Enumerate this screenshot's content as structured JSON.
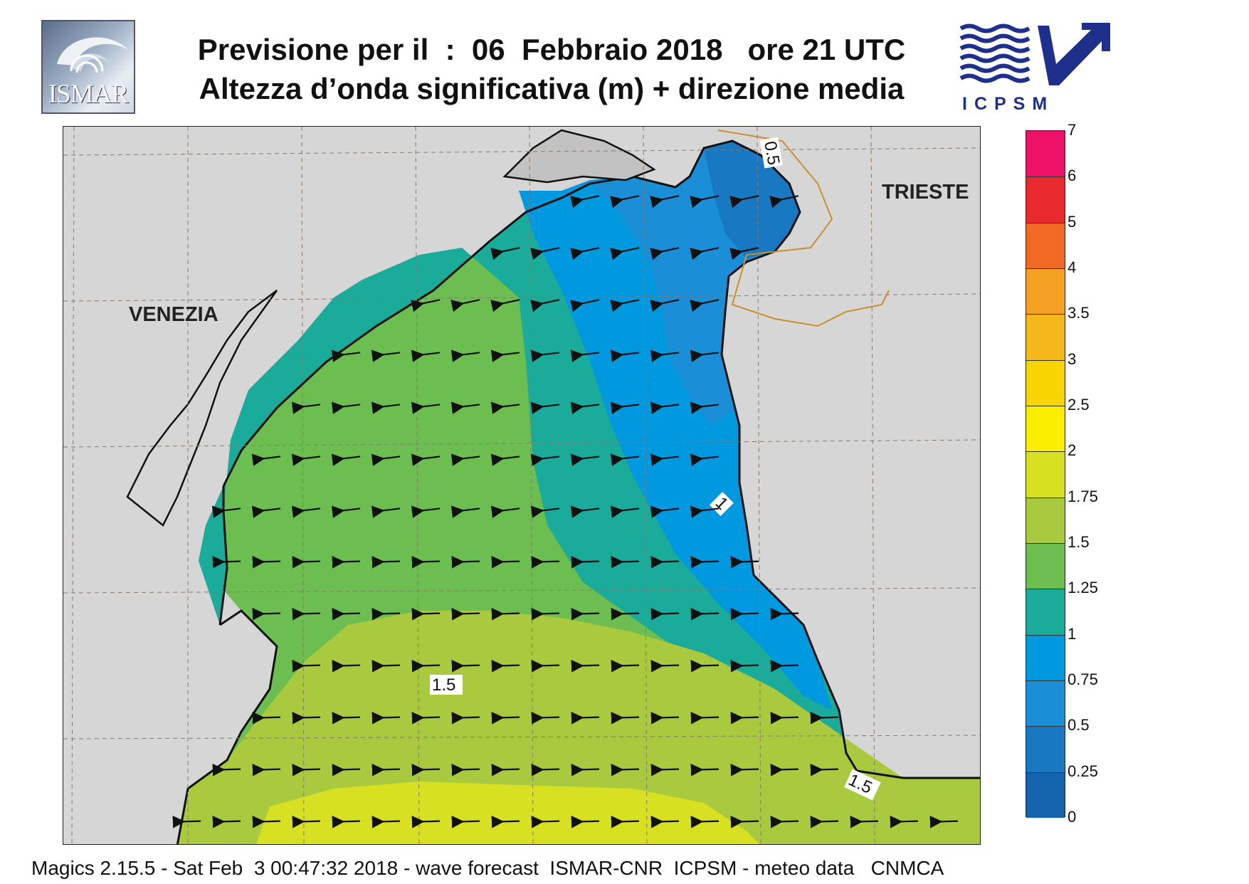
{
  "header": {
    "title_line1": "Previsione per il  :  06  Febbraio 2018   ore 21 UTC",
    "title_line2": "Altezza d’onda significativa (m) + direzione media"
  },
  "logos": {
    "left": {
      "text": "ISMAR",
      "icon": "ismar-logo"
    },
    "right": {
      "text": "ICPSM",
      "icon": "icpsm-wave-arrow-logo",
      "color": "#1e2f8c"
    }
  },
  "map": {
    "land_color": "#d6d6d6",
    "coast_color": "#111111",
    "border_color": "#c8902c",
    "cities": [
      {
        "name": "VENEZIA"
      },
      {
        "name": "TRIESTE"
      }
    ],
    "contour_labels": [
      "0.5",
      "1",
      "1.5",
      "1.5"
    ],
    "arrow_direction": "towards west (easterly waves)"
  },
  "colorbar": {
    "ticks": [
      "7",
      "6",
      "5",
      "4",
      "3.5",
      "3",
      "2.5",
      "2",
      "1.75",
      "1.5",
      "1.25",
      "1",
      "0.75",
      "0.5",
      "0.25",
      "0"
    ],
    "colors": [
      "#ee1168",
      "#e82a2f",
      "#f06a25",
      "#f5a123",
      "#f5b81a",
      "#f8d500",
      "#fbee00",
      "#d7e122",
      "#a9c93f",
      "#6bbe4f",
      "#1aab9a",
      "#0099e0",
      "#1a8fd8",
      "#1878c2",
      "#1463ad"
    ]
  },
  "footer": {
    "text": "Magics 2.15.5 - Sat Feb  3 00:47:32 2018 - wave forecast  ISMAR-CNR  ICPSM - meteo data   CNMCA"
  }
}
